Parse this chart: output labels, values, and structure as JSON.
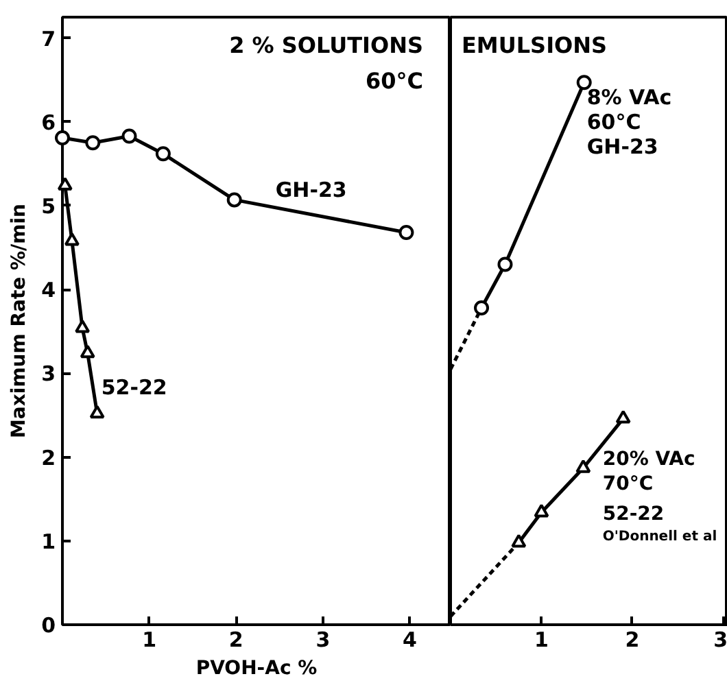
{
  "chart_data": [
    {
      "type": "line",
      "title": "2 % SOLUTIONS\n60°C",
      "xlabel": "PVOH-Ac %",
      "ylabel": "Maximum Rate %/min",
      "xlim": [
        0,
        4.47
      ],
      "ylim": [
        0,
        7.25
      ],
      "xticks": [
        1,
        2,
        3,
        4
      ],
      "yticks": [
        0,
        1,
        2,
        3,
        4,
        5,
        6,
        7
      ],
      "grid": false,
      "series": [
        {
          "name": "GH-23",
          "color": "#000000",
          "marker": "circle",
          "line_style": "solid",
          "x": [
            0,
            0.35,
            0.77,
            1.16,
            1.98,
            3.96
          ],
          "values": [
            5.81,
            5.75,
            5.83,
            5.62,
            5.07,
            4.68
          ]
        },
        {
          "name": "52-22",
          "color": "#000000",
          "marker": "triangle",
          "line_style": "solid",
          "x": [
            0.03,
            0.11,
            0.23,
            0.29,
            0.4
          ],
          "values": [
            5.24,
            4.58,
            3.54,
            3.24,
            2.52
          ]
        }
      ]
    },
    {
      "type": "line",
      "title": "EMULSIONS",
      "xlim": [
        0,
        3.05
      ],
      "ylim": [
        0,
        7.25
      ],
      "xticks": [
        1,
        2,
        3
      ],
      "yticks": [
        0,
        1,
        2,
        3,
        4,
        5,
        6,
        7
      ],
      "tick_labels": "x",
      "grid": false,
      "series": [
        {
          "color": "#000000",
          "line_style": "dashed",
          "x": [
            0,
            0.34
          ],
          "values": [
            3.05,
            3.78
          ]
        },
        {
          "name": "8% VAc\n60°C\nGH-23",
          "color": "#000000",
          "marker": "circle",
          "line_style": "solid",
          "x": [
            0.34,
            0.6,
            1.47
          ],
          "values": [
            3.78,
            4.3,
            6.47
          ]
        },
        {
          "color": "#000000",
          "line_style": "dashed",
          "x": [
            0,
            0.75
          ],
          "values": [
            0.1,
            0.98
          ]
        },
        {
          "name": "20% VAc\n70°C\n52-22\nO'Donnell et al",
          "color": "#000000",
          "marker": "triangle",
          "line_style": "solid",
          "x": [
            0.75,
            1.0,
            1.46,
            1.9
          ],
          "values": [
            0.98,
            1.34,
            1.87,
            2.46
          ]
        }
      ]
    }
  ]
}
